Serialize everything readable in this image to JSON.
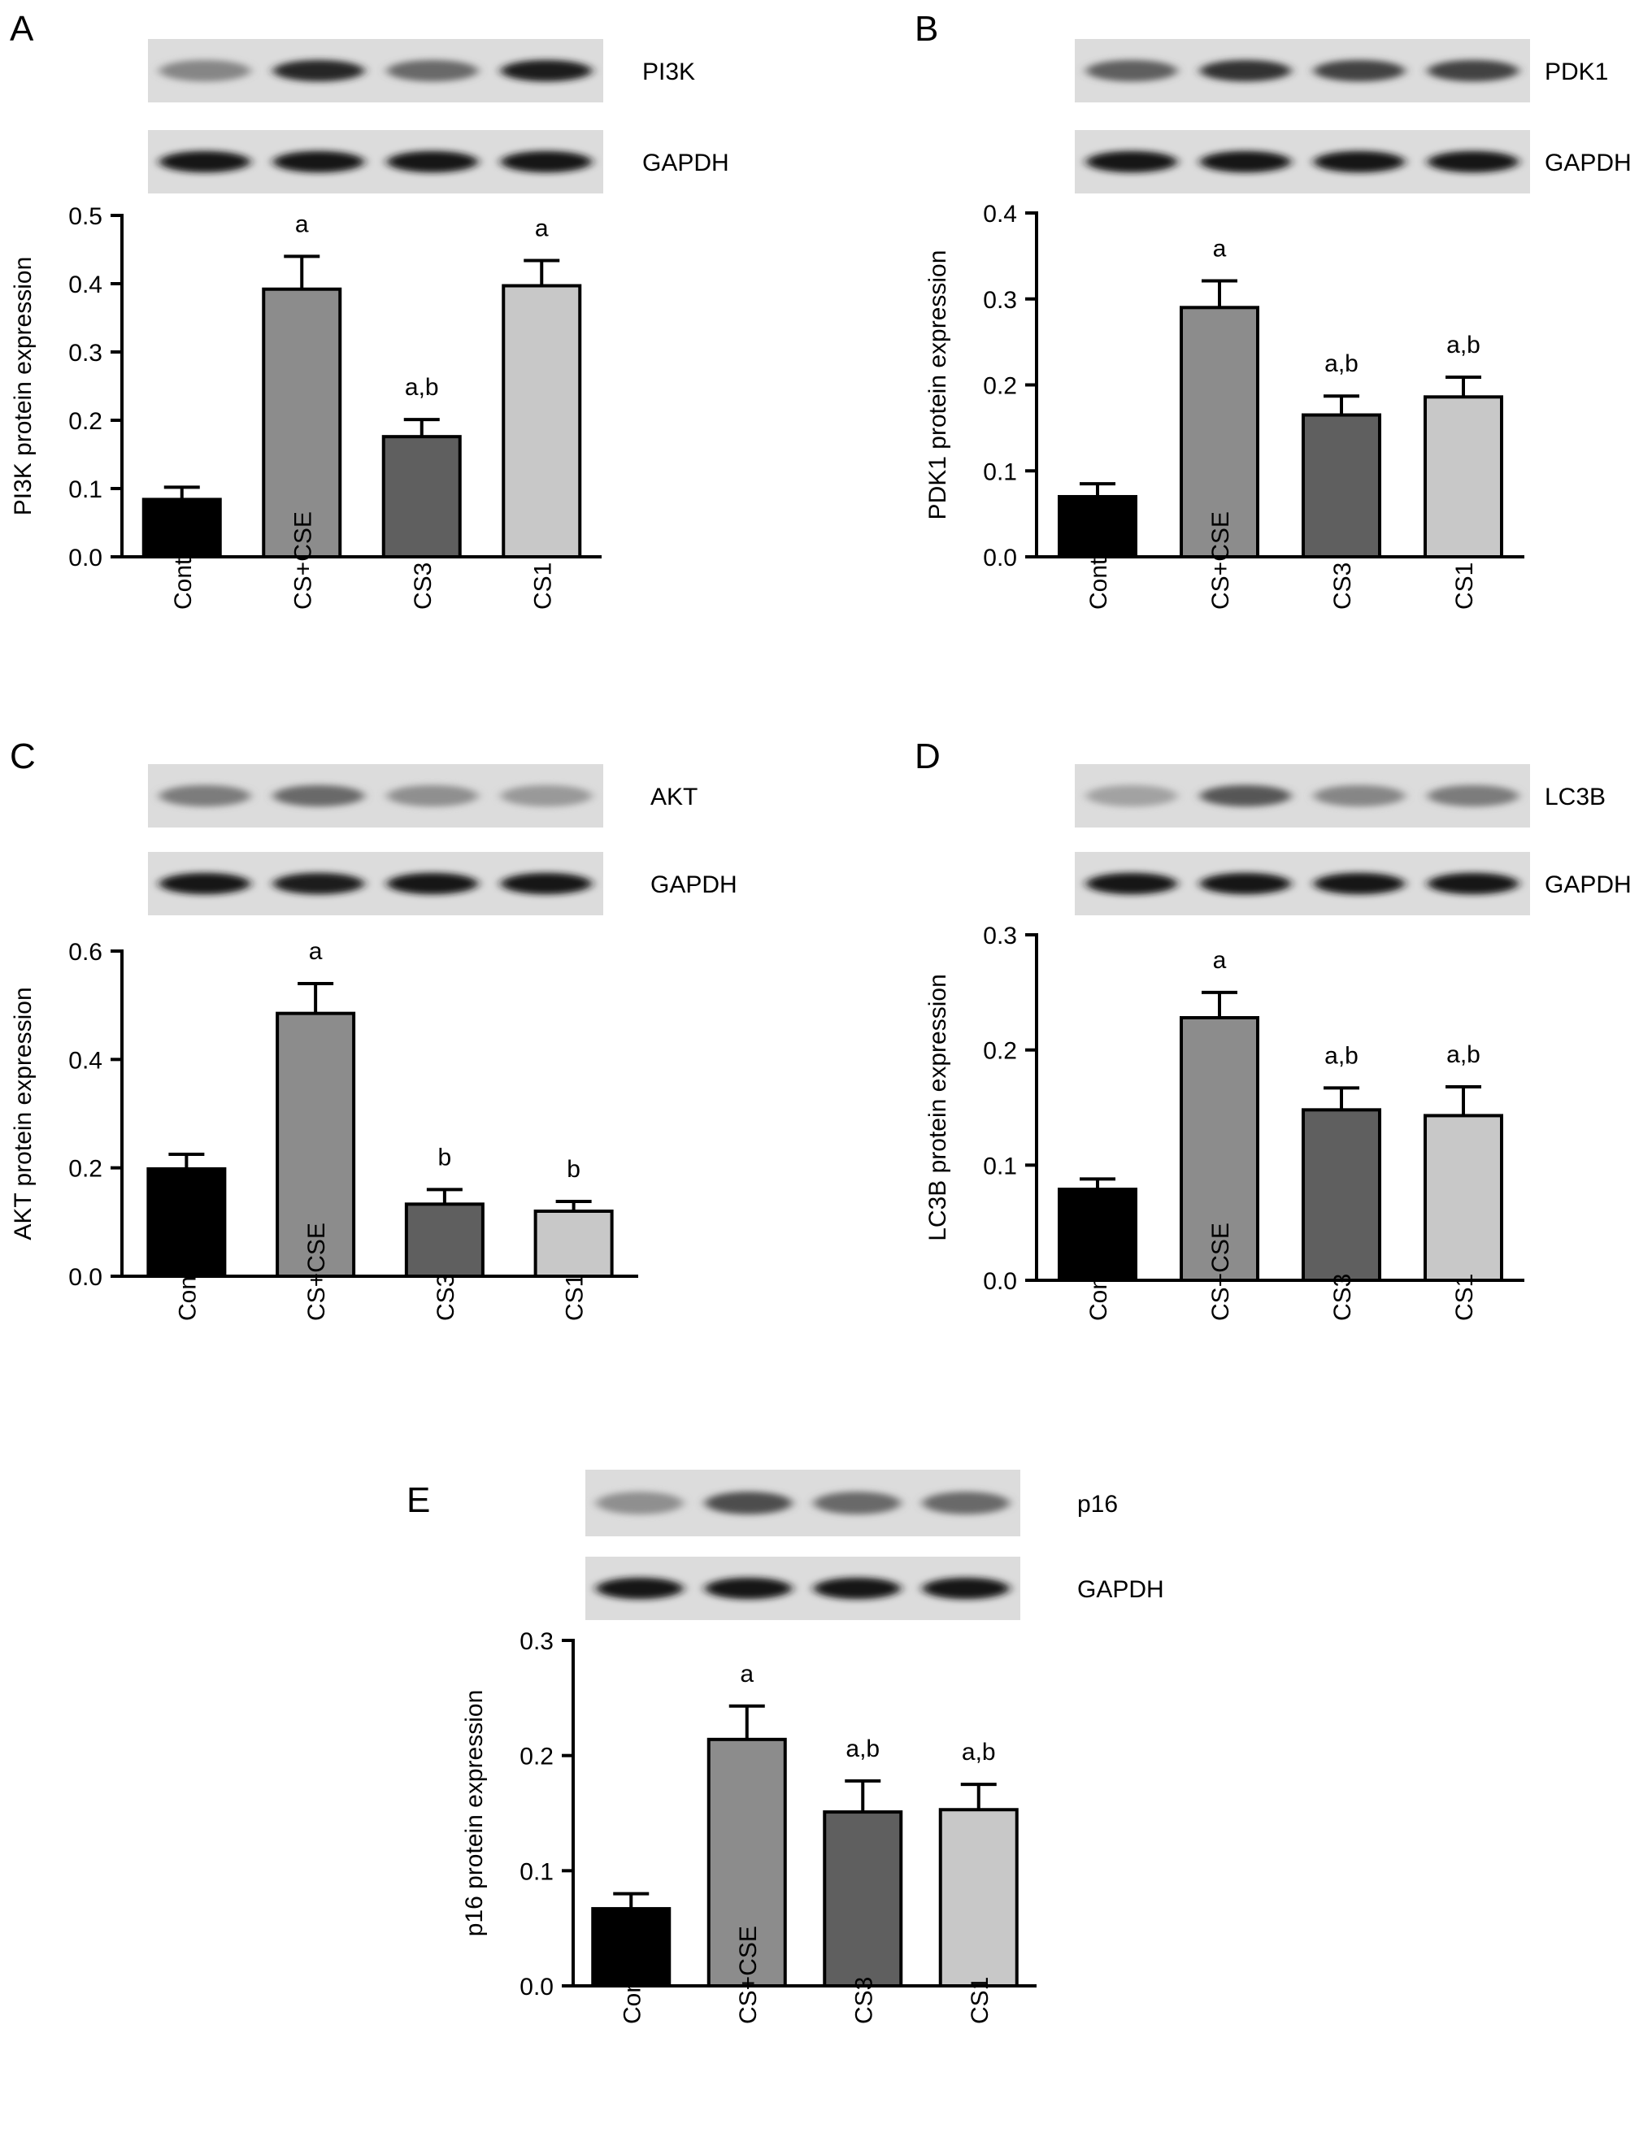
{
  "chart_data": [
    {
      "type": "bar",
      "panel_letter": "A",
      "categories": [
        "Control",
        "CS+CSE",
        "CS3",
        "CS1"
      ],
      "values": [
        0.084,
        0.392,
        0.176,
        0.397
      ],
      "errors": [
        0.018,
        0.048,
        0.025,
        0.037
      ],
      "significance": [
        "",
        "a",
        "a,b",
        "a"
      ],
      "ylabel": "PI3K protein expression",
      "ylim": [
        0,
        0.5
      ],
      "yticks": [
        0.0,
        0.1,
        0.2,
        0.3,
        0.4,
        0.5
      ],
      "ytick_labels": [
        "0.0",
        "0.1",
        "0.2",
        "0.3",
        "0.4",
        "0.5"
      ],
      "bar_colors": [
        "#000000",
        "#8c8c8c",
        "#5f5f5f",
        "#c8c8c8"
      ],
      "blot_labels": [
        "PI3K",
        "GAPDH"
      ],
      "blot_intensity": [
        [
          0.35,
          0.85,
          0.5,
          0.9
        ],
        [
          0.95,
          0.95,
          0.92,
          0.92
        ]
      ]
    },
    {
      "type": "bar",
      "panel_letter": "B",
      "categories": [
        "Control",
        "CS+CSE",
        "CS3",
        "CS1"
      ],
      "values": [
        0.07,
        0.29,
        0.165,
        0.186
      ],
      "errors": [
        0.015,
        0.031,
        0.022,
        0.023
      ],
      "significance": [
        "",
        "a",
        "a,b",
        "a,b"
      ],
      "ylabel": "PDK1 protein expression",
      "ylim": [
        0,
        0.4
      ],
      "yticks": [
        0.0,
        0.1,
        0.2,
        0.3,
        0.4
      ],
      "ytick_labels": [
        "0.0",
        "0.1",
        "0.2",
        "0.3",
        "0.4"
      ],
      "bar_colors": [
        "#000000",
        "#8c8c8c",
        "#5f5f5f",
        "#c8c8c8"
      ],
      "blot_labels": [
        "PDK1",
        "GAPDH"
      ],
      "blot_intensity": [
        [
          0.55,
          0.8,
          0.7,
          0.7
        ],
        [
          0.95,
          0.95,
          0.95,
          0.92
        ]
      ]
    },
    {
      "type": "bar",
      "panel_letter": "C",
      "categories": [
        "Control",
        "CS+CSE",
        "CS3",
        "CS1"
      ],
      "values": [
        0.198,
        0.485,
        0.133,
        0.12
      ],
      "errors": [
        0.027,
        0.055,
        0.027,
        0.018
      ],
      "significance": [
        "",
        "a",
        "b",
        "b"
      ],
      "ylabel": "AKT protein expression",
      "ylim": [
        0,
        0.6
      ],
      "yticks": [
        0.0,
        0.2,
        0.4,
        0.6
      ],
      "ytick_labels": [
        "0.0",
        "0.2",
        "0.4",
        "0.6"
      ],
      "bar_colors": [
        "#000000",
        "#8c8c8c",
        "#5f5f5f",
        "#c8c8c8"
      ],
      "blot_labels": [
        "AKT",
        "GAPDH"
      ],
      "blot_intensity": [
        [
          0.4,
          0.5,
          0.3,
          0.25
        ],
        [
          0.95,
          0.9,
          0.95,
          0.92
        ]
      ]
    },
    {
      "type": "bar",
      "panel_letter": "D",
      "categories": [
        "Control",
        "CS+CSE",
        "CS3",
        "CS1"
      ],
      "values": [
        0.079,
        0.228,
        0.148,
        0.143
      ],
      "errors": [
        0.009,
        0.022,
        0.019,
        0.025
      ],
      "significance": [
        "",
        "a",
        "a,b",
        "a,b"
      ],
      "ylabel": "LC3B protein expression",
      "ylim": [
        0,
        0.3
      ],
      "yticks": [
        0.0,
        0.1,
        0.2,
        0.3
      ],
      "ytick_labels": [
        "0.0",
        "0.1",
        "0.2",
        "0.3"
      ],
      "bar_colors": [
        "#000000",
        "#8c8c8c",
        "#5f5f5f",
        "#c8c8c8"
      ],
      "blot_labels": [
        "LC3B",
        "GAPDH"
      ],
      "blot_intensity": [
        [
          0.2,
          0.6,
          0.35,
          0.4
        ],
        [
          0.95,
          0.92,
          0.95,
          0.95
        ]
      ]
    },
    {
      "type": "bar",
      "panel_letter": "E",
      "categories": [
        "Control",
        "CS+CSE",
        "CS3",
        "CS1"
      ],
      "values": [
        0.067,
        0.214,
        0.151,
        0.153
      ],
      "errors": [
        0.013,
        0.029,
        0.027,
        0.022
      ],
      "significance": [
        "",
        "a",
        "a,b",
        "a,b"
      ],
      "ylabel": "p16 protein expression",
      "ylim": [
        0,
        0.3
      ],
      "yticks": [
        0.0,
        0.1,
        0.2,
        0.3
      ],
      "ytick_labels": [
        "0.0",
        "0.1",
        "0.2",
        "0.3"
      ],
      "bar_colors": [
        "#000000",
        "#8c8c8c",
        "#5f5f5f",
        "#c8c8c8"
      ],
      "blot_labels": [
        "p16",
        "GAPDH"
      ],
      "blot_intensity": [
        [
          0.3,
          0.65,
          0.5,
          0.5
        ],
        [
          0.95,
          0.92,
          0.95,
          0.95
        ]
      ]
    }
  ]
}
